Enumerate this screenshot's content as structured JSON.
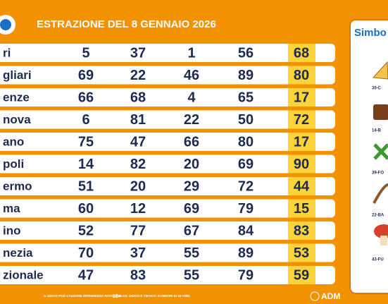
{
  "header": {
    "title": "ESTRAZIONE DEL 8 GENNAIO 2026"
  },
  "table": {
    "rows": [
      {
        "name": "ri",
        "numbers": [
          "5",
          "37",
          "1",
          "56",
          "68"
        ]
      },
      {
        "name": "gliari",
        "numbers": [
          "69",
          "22",
          "46",
          "89",
          "80"
        ]
      },
      {
        "name": "enze",
        "numbers": [
          "66",
          "68",
          "4",
          "65",
          "17"
        ]
      },
      {
        "name": "nova",
        "numbers": [
          "6",
          "81",
          "22",
          "50",
          "72"
        ]
      },
      {
        "name": "ano",
        "numbers": [
          "75",
          "47",
          "66",
          "80",
          "17"
        ]
      },
      {
        "name": "poli",
        "numbers": [
          "14",
          "82",
          "20",
          "69",
          "90"
        ]
      },
      {
        "name": "ermo",
        "numbers": [
          "51",
          "20",
          "29",
          "72",
          "44"
        ]
      },
      {
        "name": "ma",
        "numbers": [
          "60",
          "12",
          "69",
          "79",
          "15"
        ]
      },
      {
        "name": "ino",
        "numbers": [
          "52",
          "77",
          "67",
          "84",
          "83"
        ]
      },
      {
        "name": "nezia",
        "numbers": [
          "70",
          "37",
          "55",
          "89",
          "53"
        ]
      },
      {
        "name": "zionale",
        "numbers": [
          "47",
          "83",
          "55",
          "79",
          "59"
        ]
      }
    ]
  },
  "symbols": {
    "title": "Simbo",
    "items": [
      "30-C",
      "14-B",
      "39-FO",
      "22-BA",
      "43-FU"
    ]
  },
  "footer": {
    "warning": "IL GIOCO PUÒ CAUSARE DIPENDENZA PATOLOGICA",
    "age": "18+",
    "age_note": "IL GIOCO È VIETATO AI MINORI DI 18 ANNI",
    "brand": "ADM"
  }
}
